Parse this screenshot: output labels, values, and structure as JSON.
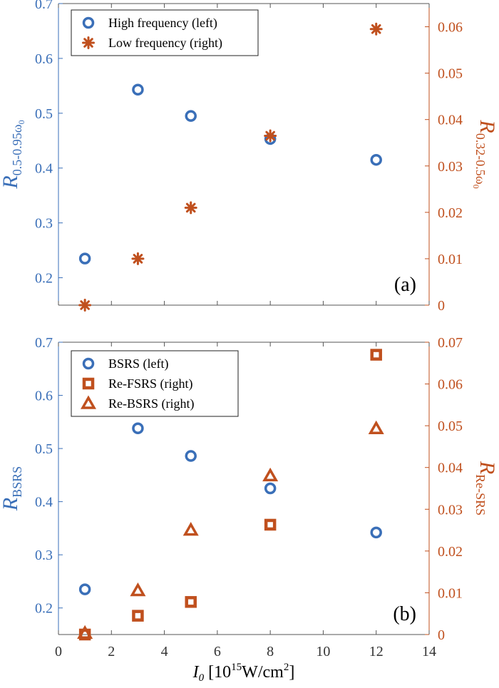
{
  "colors": {
    "left_axis": "#3a6fb8",
    "right_axis": "#c0501e",
    "frame": "#222222",
    "x_axis": "#555555"
  },
  "chart_data": [
    {
      "type": "scatter",
      "panel_label": "(a)",
      "xlim": [
        0,
        14
      ],
      "x_ticks": [
        0,
        2,
        4,
        6,
        8,
        10,
        12,
        14
      ],
      "x_tick_labels_shown": false,
      "left_axis": {
        "ylabel_main": "R",
        "ylabel_sub": "0.5-0.95ω",
        "ylabel_subsub": "0",
        "ylim": [
          0.15,
          0.7
        ],
        "ticks": [
          "0.2",
          "0.3",
          "0.4",
          "0.5",
          "0.6",
          "0.7"
        ]
      },
      "right_axis": {
        "ylabel_main": "R",
        "ylabel_sub": "0.32-0.5ω",
        "ylabel_subsub": "0",
        "ylim": [
          0,
          0.065
        ],
        "ticks": [
          "0",
          "0.01",
          "0.02",
          "0.03",
          "0.04",
          "0.05",
          "0.06"
        ]
      },
      "legend_position": "top-left",
      "series": [
        {
          "name": "High frequency (left)",
          "axis": "left",
          "marker": "circle",
          "color": "#3a6fb8",
          "x": [
            1,
            3,
            5,
            8,
            12
          ],
          "y": [
            0.235,
            0.543,
            0.495,
            0.453,
            0.415
          ]
        },
        {
          "name": "Low frequency (right)",
          "axis": "right",
          "marker": "asterisk",
          "color": "#c0501e",
          "x": [
            1,
            3,
            5,
            8,
            12
          ],
          "y": [
            0.0,
            0.01,
            0.021,
            0.0365,
            0.0595
          ]
        }
      ]
    },
    {
      "type": "scatter",
      "panel_label": "(b)",
      "xlim": [
        0,
        14
      ],
      "x_ticks": [
        0,
        2,
        4,
        6,
        8,
        10,
        12,
        14
      ],
      "x_tick_labels": [
        "0",
        "2",
        "4",
        "6",
        "8",
        "10",
        "12",
        "14"
      ],
      "xlabel_main": "I",
      "xlabel_sub": "0",
      "xlabel_rest1": " [10",
      "xlabel_sup1": "15",
      "xlabel_rest2": "W/cm",
      "xlabel_sup2": "2",
      "xlabel_rest3": "]",
      "left_axis": {
        "ylabel_main": "R",
        "ylabel_sub": "BSRS",
        "ylim": [
          0.15,
          0.7
        ],
        "ticks": [
          "0.2",
          "0.3",
          "0.4",
          "0.5",
          "0.6",
          "0.7"
        ]
      },
      "right_axis": {
        "ylabel_main": "R",
        "ylabel_sub": "Re-SRS",
        "ylim": [
          0,
          0.07
        ],
        "ticks": [
          "0",
          "0.01",
          "0.02",
          "0.03",
          "0.04",
          "0.05",
          "0.06",
          "0.07"
        ]
      },
      "legend_position": "top-left",
      "series": [
        {
          "name": "BSRS (left)",
          "axis": "left",
          "marker": "circle",
          "color": "#3a6fb8",
          "x": [
            1,
            3,
            5,
            8,
            12
          ],
          "y": [
            0.235,
            0.538,
            0.486,
            0.425,
            0.342
          ]
        },
        {
          "name": "Re-FSRS (right)",
          "axis": "right",
          "marker": "square",
          "color": "#c0501e",
          "x": [
            1,
            3,
            5,
            8,
            12
          ],
          "y": [
            0.0,
            0.0045,
            0.0078,
            0.0263,
            0.067
          ]
        },
        {
          "name": "Re-BSRS (right)",
          "axis": "right",
          "marker": "triangle",
          "color": "#c0501e",
          "x": [
            1,
            3,
            5,
            8,
            12
          ],
          "y": [
            0.0003,
            0.0105,
            0.025,
            0.038,
            0.0493
          ]
        }
      ]
    }
  ]
}
